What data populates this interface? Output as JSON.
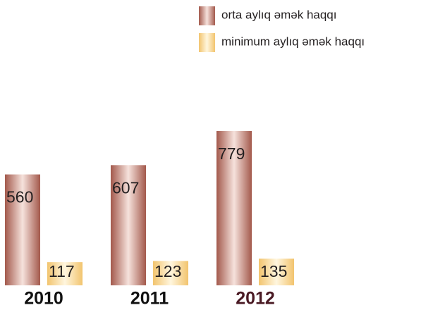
{
  "chart_data": {
    "type": "bar",
    "categories": [
      "2010",
      "2011",
      "2012"
    ],
    "category_colors": [
      "#111111",
      "#111111",
      "#4a1a24"
    ],
    "series": [
      {
        "name": "orta aylıq əmək haqqı",
        "color": "#a3594c",
        "values": [
          560,
          607,
          779
        ]
      },
      {
        "name": "minimum aylıq əmək haqqı",
        "color": "#f2c46e",
        "values": [
          117,
          123,
          135
        ]
      }
    ],
    "legend": "top-right"
  }
}
